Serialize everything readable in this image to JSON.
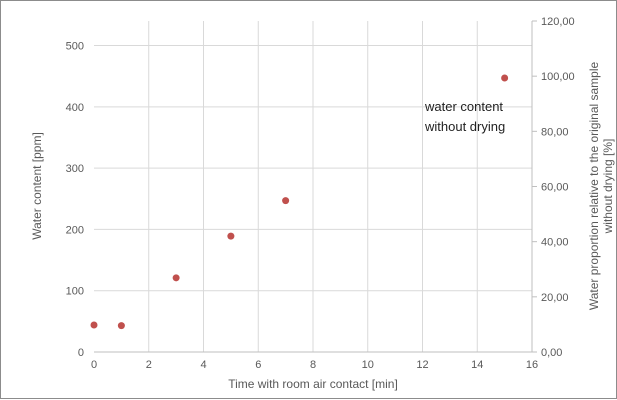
{
  "chart_data": {
    "type": "scatter",
    "title": "",
    "xlabel": "Time with room air contact [min]",
    "ylabel": "Water content [ppm]",
    "y2label_line1": "Water proportion relative to the original sample",
    "y2label_line2": "without drying [%]",
    "xlim": [
      0,
      16
    ],
    "ylim": [
      0,
      540
    ],
    "y2lim": [
      0,
      120
    ],
    "x_ticks": [
      "0",
      "2",
      "4",
      "6",
      "8",
      "10",
      "12",
      "14",
      "16"
    ],
    "y_ticks": [
      "0",
      "100",
      "200",
      "300",
      "400",
      "500"
    ],
    "y2_ticks": [
      "0,00",
      "20,00",
      "40,00",
      "60,00",
      "80,00",
      "100,00",
      "120,00"
    ],
    "grid": true,
    "series": [
      {
        "color": "#c0504d",
        "x": [
          0,
          1,
          3,
          5,
          7,
          15
        ],
        "y": [
          44,
          43,
          121,
          189,
          247,
          447
        ]
      }
    ],
    "annotation": {
      "line1": "water content",
      "line2": "without drying",
      "x": 15,
      "y": 447
    }
  }
}
